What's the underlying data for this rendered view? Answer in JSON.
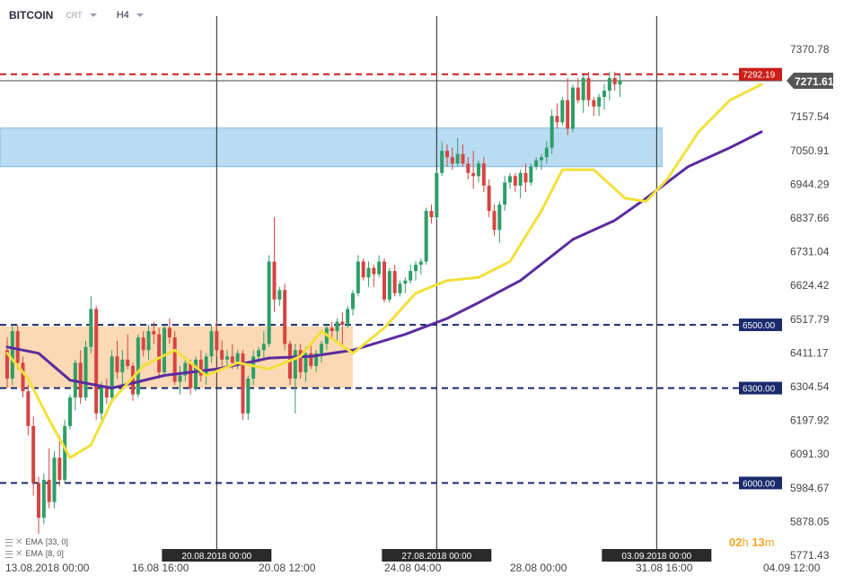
{
  "toolbar": {
    "symbol": "BITCOIN",
    "chart_type": "CRT",
    "timeframe": "H4"
  },
  "indicators": [
    {
      "label": "EMA",
      "params": "[33, 0]",
      "color": "#5b2d9e"
    },
    {
      "label": "EMA",
      "params": "[8, 0]",
      "color": "#f2e03a"
    }
  ],
  "timer": {
    "h": "02",
    "h_unit": "h",
    "m": "13",
    "m_unit": "m"
  },
  "colors": {
    "up": "#2e9e68",
    "down": "#d64541",
    "zone_orange": "#fcd9b5",
    "zone_blue": "#b9dcf2",
    "level_navy": "#1a2a6c",
    "level_red": "#cc1f1a"
  },
  "chart_data": {
    "type": "candlestick",
    "title": "BITCOIN H4",
    "ylim": [
      5771.43,
      7370.78
    ],
    "y_ticks": [
      "7370.78",
      "7264.16",
      "7157.54",
      "7050.91",
      "6944.29",
      "6837.66",
      "6731.04",
      "6624.42",
      "6517.79",
      "6411.17",
      "6304.54",
      "6197.92",
      "6091.30",
      "5984.67",
      "5878.05",
      "5771.43"
    ],
    "x_labels": [
      "13.08.2018  00:00",
      "16.08  16:00",
      "20.08  12:00",
      "24.08  04:00",
      "28.08  00:00",
      "31.08  16:00",
      "04.09  12:00"
    ],
    "x_positions": [
      0,
      22,
      45,
      67,
      90,
      112,
      134
    ],
    "x_span": 134,
    "vertical_markers": [
      {
        "index": 40,
        "label": "20.08.2018 00:00"
      },
      {
        "index": 82,
        "label": "27.08.2018 00:00"
      },
      {
        "index": 124,
        "label": "03.09.2018 00:00"
      }
    ],
    "levels": [
      {
        "value": 7292.19,
        "label": "7292.19",
        "color": "#cc1f1a"
      },
      {
        "value": 6500.0,
        "label": "6500.00",
        "color": "#1a2a6c"
      },
      {
        "value": 6300.0,
        "label": "6300.00",
        "color": "#1a2a6c"
      },
      {
        "value": 6000.0,
        "label": "6000.00",
        "color": "#1a2a6c"
      }
    ],
    "current_price": {
      "value": 7271.61,
      "label": "7271.61"
    },
    "zones": [
      {
        "name": "demand",
        "from_index": 0,
        "to_index": 66,
        "y0": 6300,
        "y1": 6495,
        "color": "#fcd9b5"
      },
      {
        "name": "supply",
        "from_index": 0,
        "to_index": 125,
        "y0": 7000,
        "y1": 7122,
        "color": "#b9dcf2"
      }
    ],
    "candles": [
      [
        6420,
        6460,
        6300,
        6330
      ],
      [
        6330,
        6500,
        6310,
        6480
      ],
      [
        6480,
        6500,
        6360,
        6380
      ],
      [
        6380,
        6400,
        6270,
        6290
      ],
      [
        6290,
        6310,
        6150,
        6180
      ],
      [
        6180,
        6210,
        5960,
        6000
      ],
      [
        6000,
        6020,
        5840,
        5890
      ],
      [
        5890,
        6030,
        5870,
        6010
      ],
      [
        6010,
        6110,
        5920,
        5940
      ],
      [
        5940,
        6100,
        5920,
        6080
      ],
      [
        6080,
        6150,
        5990,
        6010
      ],
      [
        6010,
        6200,
        6000,
        6180
      ],
      [
        6180,
        6280,
        6170,
        6270
      ],
      [
        6270,
        6390,
        6230,
        6380
      ],
      [
        6380,
        6420,
        6250,
        6270
      ],
      [
        6270,
        6450,
        6260,
        6430
      ],
      [
        6430,
        6590,
        6410,
        6550
      ],
      [
        6550,
        6560,
        6200,
        6220
      ],
      [
        6220,
        6320,
        6200,
        6300
      ],
      [
        6300,
        6330,
        6250,
        6270
      ],
      [
        6270,
        6420,
        6260,
        6400
      ],
      [
        6400,
        6450,
        6330,
        6350
      ],
      [
        6350,
        6420,
        6300,
        6390
      ],
      [
        6390,
        6470,
        6360,
        6370
      ],
      [
        6370,
        6380,
        6260,
        6280
      ],
      [
        6280,
        6470,
        6270,
        6460
      ],
      [
        6460,
        6480,
        6400,
        6420
      ],
      [
        6420,
        6500,
        6390,
        6480
      ],
      [
        6480,
        6510,
        6440,
        6470
      ],
      [
        6470,
        6490,
        6330,
        6350
      ],
      [
        6350,
        6500,
        6340,
        6490
      ],
      [
        6490,
        6520,
        6440,
        6460
      ],
      [
        6460,
        6480,
        6310,
        6320
      ],
      [
        6320,
        6370,
        6280,
        6340
      ],
      [
        6340,
        6400,
        6320,
        6380
      ],
      [
        6380,
        6390,
        6280,
        6300
      ],
      [
        6300,
        6400,
        6290,
        6390
      ],
      [
        6390,
        6420,
        6320,
        6340
      ],
      [
        6340,
        6410,
        6310,
        6400
      ],
      [
        6400,
        6500,
        6380,
        6480
      ],
      [
        6480,
        6510,
        6400,
        6420
      ],
      [
        6420,
        6450,
        6370,
        6390
      ],
      [
        6390,
        6420,
        6370,
        6400
      ],
      [
        6400,
        6440,
        6360,
        6380
      ],
      [
        6380,
        6420,
        6360,
        6410
      ],
      [
        6410,
        6420,
        6200,
        6220
      ],
      [
        6220,
        6340,
        6200,
        6330
      ],
      [
        6330,
        6420,
        6310,
        6400
      ],
      [
        6400,
        6430,
        6380,
        6420
      ],
      [
        6420,
        6480,
        6390,
        6440
      ],
      [
        6440,
        6720,
        6430,
        6700
      ],
      [
        6700,
        6840,
        6540,
        6580
      ],
      [
        6580,
        6620,
        6560,
        6610
      ],
      [
        6610,
        6630,
        6420,
        6440
      ],
      [
        6440,
        6450,
        6310,
        6330
      ],
      [
        6330,
        6440,
        6220,
        6420
      ],
      [
        6420,
        6440,
        6330,
        6350
      ],
      [
        6350,
        6430,
        6320,
        6410
      ],
      [
        6410,
        6440,
        6360,
        6370
      ],
      [
        6370,
        6420,
        6350,
        6410
      ],
      [
        6410,
        6450,
        6380,
        6440
      ],
      [
        6440,
        6500,
        6420,
        6490
      ],
      [
        6490,
        6510,
        6460,
        6480
      ],
      [
        6480,
        6520,
        6450,
        6510
      ],
      [
        6510,
        6540,
        6430,
        6500
      ],
      [
        6500,
        6560,
        6490,
        6550
      ],
      [
        6550,
        6610,
        6530,
        6600
      ],
      [
        6600,
        6720,
        6590,
        6700
      ],
      [
        6700,
        6710,
        6640,
        6650
      ],
      [
        6650,
        6700,
        6620,
        6680
      ],
      [
        6680,
        6690,
        6620,
        6660
      ],
      [
        6660,
        6720,
        6650,
        6700
      ],
      [
        6700,
        6710,
        6570,
        6580
      ],
      [
        6580,
        6680,
        6570,
        6670
      ],
      [
        6670,
        6690,
        6590,
        6600
      ],
      [
        6600,
        6640,
        6590,
        6630
      ],
      [
        6630,
        6650,
        6600,
        6640
      ],
      [
        6640,
        6690,
        6630,
        6670
      ],
      [
        6670,
        6700,
        6640,
        6690
      ],
      [
        6690,
        6710,
        6660,
        6700
      ],
      [
        6700,
        6870,
        6690,
        6860
      ],
      [
        6860,
        6880,
        6820,
        6840
      ],
      [
        6840,
        6990,
        6830,
        6980
      ],
      [
        6980,
        7080,
        6970,
        7050
      ],
      [
        7050,
        7070,
        7000,
        7030
      ],
      [
        7030,
        7060,
        6990,
        7010
      ],
      [
        7010,
        7090,
        7000,
        7040
      ],
      [
        7040,
        7070,
        7000,
        7010
      ],
      [
        7010,
        7030,
        6960,
        6980
      ],
      [
        6980,
        7050,
        6930,
        6970
      ],
      [
        6970,
        7020,
        6950,
        7010
      ],
      [
        7010,
        7030,
        6920,
        6940
      ],
      [
        6940,
        6960,
        6840,
        6860
      ],
      [
        6860,
        6880,
        6780,
        6800
      ],
      [
        6800,
        6890,
        6760,
        6880
      ],
      [
        6880,
        6970,
        6860,
        6950
      ],
      [
        6950,
        6980,
        6930,
        6970
      ],
      [
        6970,
        6980,
        6920,
        6940
      ],
      [
        6940,
        6990,
        6900,
        6980
      ],
      [
        6980,
        7010,
        6920,
        6950
      ],
      [
        6950,
        7010,
        6940,
        7000
      ],
      [
        7000,
        7030,
        6990,
        7020
      ],
      [
        7020,
        7040,
        6990,
        7030
      ],
      [
        7030,
        7080,
        7010,
        7060
      ],
      [
        7060,
        7180,
        7040,
        7160
      ],
      [
        7160,
        7200,
        7120,
        7140
      ],
      [
        7140,
        7220,
        7130,
        7210
      ],
      [
        7210,
        7280,
        7100,
        7120
      ],
      [
        7120,
        7260,
        7110,
        7250
      ],
      [
        7250,
        7280,
        7200,
        7210
      ],
      [
        7210,
        7290,
        7170,
        7280
      ],
      [
        7280,
        7300,
        7190,
        7210
      ],
      [
        7210,
        7220,
        7160,
        7190
      ],
      [
        7190,
        7230,
        7160,
        7220
      ],
      [
        7220,
        7260,
        7180,
        7240
      ],
      [
        7240,
        7300,
        7210,
        7280
      ],
      [
        7280,
        7300,
        7240,
        7260
      ],
      [
        7260,
        7290,
        7220,
        7271.61
      ]
    ],
    "series": [
      {
        "name": "EMA [33, 0]",
        "color": "#5b2d9e",
        "points": [
          [
            0,
            6430
          ],
          [
            6,
            6410
          ],
          [
            12,
            6325
          ],
          [
            20,
            6300
          ],
          [
            30,
            6340
          ],
          [
            40,
            6360
          ],
          [
            50,
            6395
          ],
          [
            58,
            6400
          ],
          [
            66,
            6420
          ],
          [
            76,
            6470
          ],
          [
            84,
            6520
          ],
          [
            90,
            6570
          ],
          [
            98,
            6640
          ],
          [
            108,
            6770
          ],
          [
            116,
            6830
          ],
          [
            122,
            6900
          ],
          [
            130,
            7000
          ],
          [
            138,
            7060
          ],
          [
            144,
            7110
          ]
        ]
      },
      {
        "name": "EMA [8, 0]",
        "color": "#f2e03a",
        "points": [
          [
            0,
            6410
          ],
          [
            4,
            6330
          ],
          [
            8,
            6200
          ],
          [
            12,
            6080
          ],
          [
            16,
            6120
          ],
          [
            20,
            6260
          ],
          [
            26,
            6370
          ],
          [
            32,
            6420
          ],
          [
            38,
            6340
          ],
          [
            44,
            6380
          ],
          [
            50,
            6360
          ],
          [
            56,
            6400
          ],
          [
            60,
            6480
          ],
          [
            66,
            6410
          ],
          [
            72,
            6490
          ],
          [
            78,
            6600
          ],
          [
            84,
            6640
          ],
          [
            90,
            6650
          ],
          [
            96,
            6700
          ],
          [
            102,
            6860
          ],
          [
            106,
            6990
          ],
          [
            112,
            6990
          ],
          [
            118,
            6900
          ],
          [
            122,
            6890
          ],
          [
            126,
            6960
          ],
          [
            132,
            7110
          ],
          [
            138,
            7210
          ],
          [
            144,
            7260
          ]
        ]
      }
    ]
  }
}
